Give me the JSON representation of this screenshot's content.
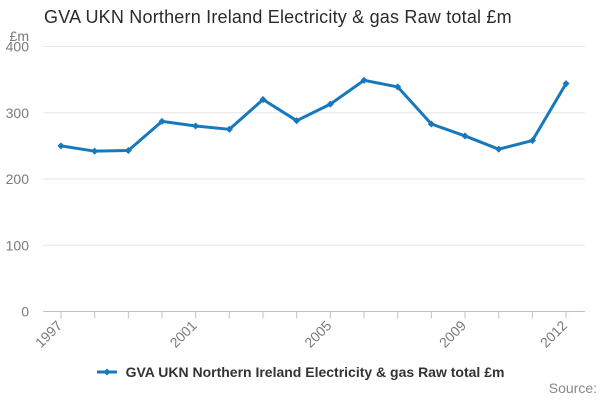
{
  "chart_data": {
    "type": "line",
    "title": "GVA UKN Northern Ireland Electricity & gas Raw total £m",
    "ylabel": "£m",
    "xlabel": "",
    "x": [
      1997,
      1998,
      1999,
      2000,
      2001,
      2002,
      2003,
      2004,
      2005,
      2006,
      2007,
      2008,
      2009,
      2010,
      2011,
      2012
    ],
    "values": [
      250,
      242,
      243,
      287,
      280,
      275,
      320,
      288,
      313,
      349,
      339,
      283,
      265,
      245,
      258,
      344
    ],
    "series_name": "GVA UKN Northern Ireland Electricity & gas Raw total £m",
    "ylim": [
      0,
      400
    ],
    "yticks": [
      0,
      100,
      200,
      300,
      400
    ],
    "xtick_labels": [
      "1997",
      "2001",
      "2005",
      "2009",
      "2012"
    ],
    "grid": true,
    "legend_position": "bottom",
    "marker": "diamond",
    "colors": {
      "line": "#1878bc",
      "grid": "#e6e6e6",
      "axis": "#b6c2d6",
      "tick_label": "#7b7b7b",
      "title": "#2b2b2b",
      "legend_text": "#333333",
      "source_text": "#888888"
    }
  },
  "legend": {
    "label": "GVA UKN Northern Ireland Electricity & gas Raw total £m"
  },
  "footer": {
    "source_label": "Source:"
  }
}
